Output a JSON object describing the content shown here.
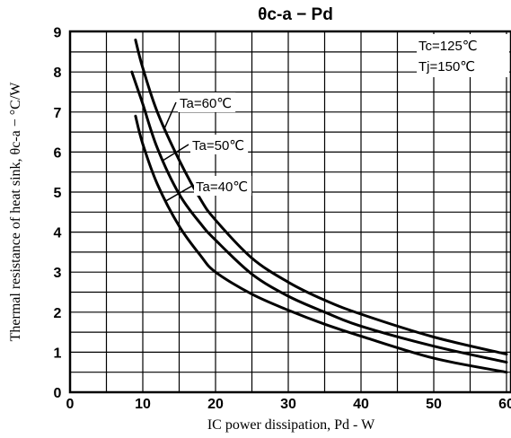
{
  "chart_data": {
    "type": "line",
    "title": "θc-a − Pd",
    "xlabel": "IC power dissipation, Pd - W",
    "ylabel": "Thermal resistance of heat sink, θc-a − °C/W",
    "xlim": [
      0,
      60
    ],
    "ylim": [
      0,
      9
    ],
    "xticks": [
      "0",
      "10",
      "20",
      "30",
      "40",
      "50",
      "60"
    ],
    "yticks": [
      "0",
      "1",
      "2",
      "3",
      "4",
      "5",
      "6",
      "7",
      "8",
      "9"
    ],
    "grid": true,
    "annotations": [
      "Tc=125℃",
      "Tj=150℃"
    ],
    "series": [
      {
        "name": "Ta=60℃",
        "x": [
          9,
          10,
          12,
          15,
          18,
          20,
          25,
          30,
          35,
          40,
          50,
          60
        ],
        "y": [
          8.8,
          8.1,
          7.0,
          5.8,
          4.8,
          4.3,
          3.35,
          2.75,
          2.3,
          1.95,
          1.38,
          0.95
        ]
      },
      {
        "name": "Ta=50℃",
        "x": [
          8.5,
          10,
          12,
          15,
          18,
          20,
          25,
          30,
          35,
          40,
          50,
          60
        ],
        "y": [
          8.0,
          7.2,
          6.1,
          4.95,
          4.2,
          3.8,
          2.95,
          2.4,
          2.0,
          1.65,
          1.15,
          0.75
        ]
      },
      {
        "name": "Ta=40℃",
        "x": [
          9,
          10,
          12,
          15,
          18,
          20,
          25,
          30,
          35,
          40,
          50,
          60
        ],
        "y": [
          6.9,
          6.2,
          5.2,
          4.15,
          3.4,
          3.0,
          2.45,
          2.05,
          1.7,
          1.4,
          0.85,
          0.5
        ]
      }
    ]
  }
}
